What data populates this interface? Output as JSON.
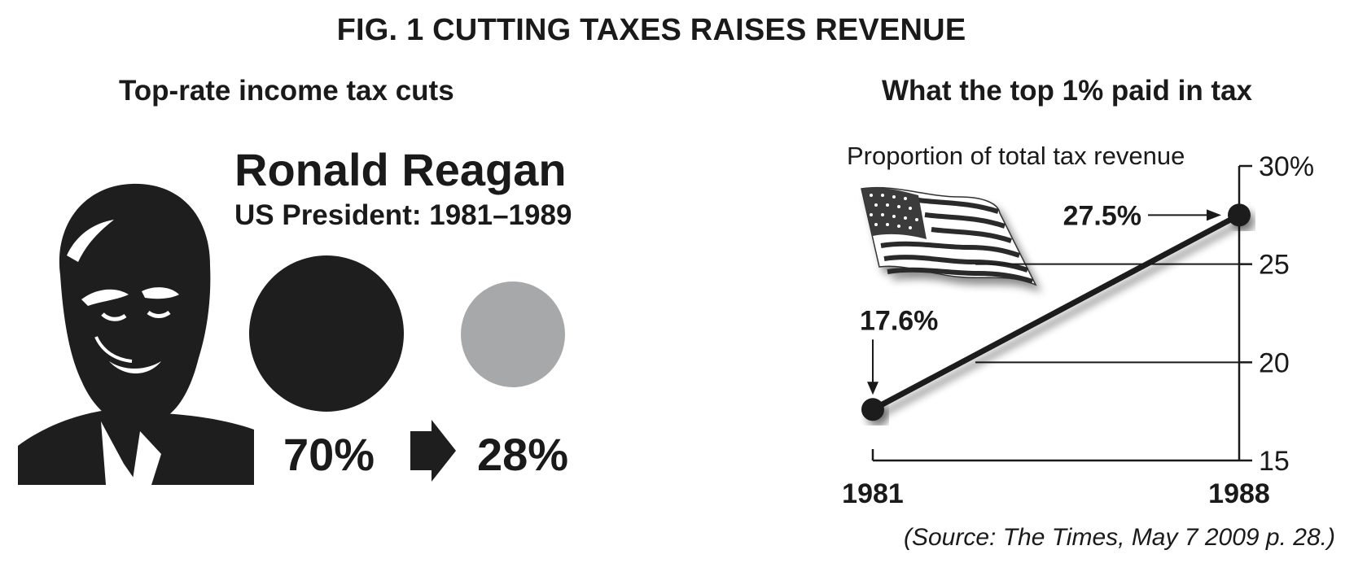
{
  "figure": {
    "title": "FIG. 1  CUTTING TAXES RAISES REVENUE",
    "source": "(Source:  The Times, May 7 2009 p. 28.)"
  },
  "left_panel": {
    "title": "Top-rate income tax cuts",
    "name": "Ronald Reagan",
    "role": "US President: 1981–1989",
    "rate_before": "70%",
    "rate_after": "28%",
    "rate_before_value": 70,
    "rate_after_value": 28,
    "colors": {
      "before": "#1e1e1e",
      "after": "#a7a8aa"
    },
    "icons": [
      "portrait-silhouette-icon",
      "right-arrow-icon"
    ]
  },
  "right_panel": {
    "title": "What the top 1% paid in tax",
    "flag_icon": "us-flag-icon"
  },
  "chart_data": {
    "type": "line",
    "title": "What the top 1% paid in tax",
    "subtitle": "Proportion of total tax revenue",
    "x": [
      "1981",
      "1988"
    ],
    "series": [
      {
        "values": [
          17.6,
          27.5
        ],
        "labels": [
          "17.6%",
          "27.5%"
        ]
      }
    ],
    "ylim": [
      15,
      30
    ],
    "yticks": [
      15,
      20,
      25,
      30
    ],
    "ytick_labels": [
      "15",
      "20",
      "25",
      "30%"
    ],
    "y_axis_side": "right",
    "grid": true
  }
}
